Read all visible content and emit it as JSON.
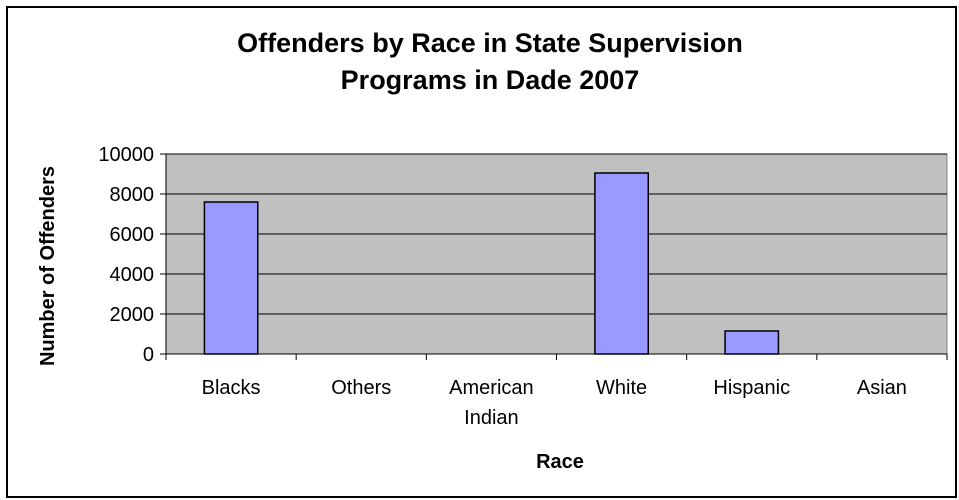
{
  "chart_data": {
    "type": "bar",
    "title": [
      "Offenders by Race  in State Supervision",
      "Programs in Dade 2007"
    ],
    "xlabel": "Race",
    "ylabel": "Number of Offenders",
    "categories": [
      [
        "Blacks"
      ],
      [
        "Others"
      ],
      [
        "American",
        "Indian"
      ],
      [
        "White"
      ],
      [
        "Hispanic"
      ],
      [
        "Asian"
      ]
    ],
    "values": [
      7600,
      0,
      0,
      9050,
      1150,
      0
    ],
    "ylim": [
      0,
      10000
    ],
    "yticks": [
      0,
      2000,
      4000,
      6000,
      8000,
      10000
    ],
    "grid": true,
    "legend": "none",
    "colors": {
      "bar": "#9999ff",
      "plot_bg": "#c0c0c0",
      "grid": "#000000"
    }
  }
}
